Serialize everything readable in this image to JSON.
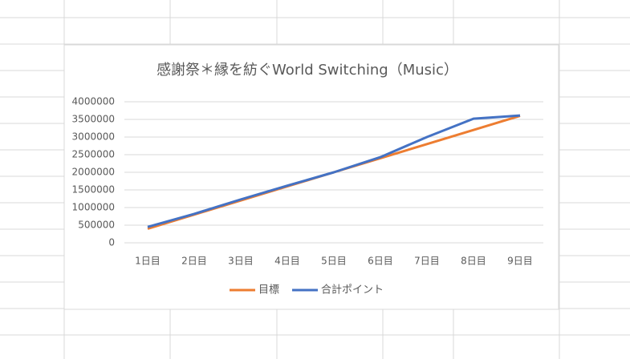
{
  "chart_data": {
    "type": "line",
    "title": "感謝祭＊縁を紡ぐWorld Switching（Music）",
    "categories": [
      "1日目",
      "2日目",
      "3日目",
      "4日目",
      "5日目",
      "6日目",
      "7日目",
      "8日目",
      "9日目"
    ],
    "series": [
      {
        "name": "目標",
        "color": "#ed7d31",
        "values": [
          400000,
          800000,
          1200000,
          1600000,
          2000000,
          2400000,
          2800000,
          3200000,
          3600000
        ]
      },
      {
        "name": "合計ポイント",
        "color": "#4472c4",
        "values": [
          450000,
          820000,
          1230000,
          1620000,
          2000000,
          2430000,
          3000000,
          3520000,
          3610000
        ]
      }
    ],
    "ylim": [
      0,
      4000000
    ],
    "yticks": [
      0,
      500000,
      1000000,
      1500000,
      2000000,
      2500000,
      3000000,
      3500000,
      4000000
    ],
    "grid": true,
    "legend": "bottom"
  }
}
